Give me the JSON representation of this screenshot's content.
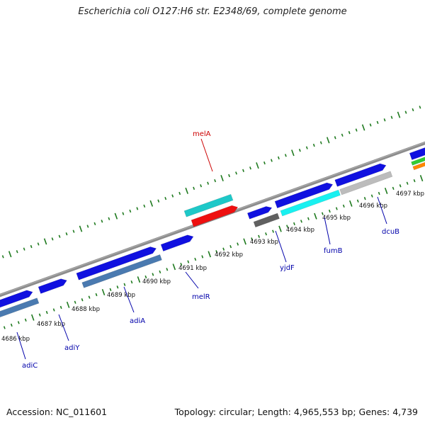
{
  "title": "Escherichia coli O127:H6 str. E2348/69, complete genome",
  "footer": {
    "accession": "Accession: NC_011601",
    "stats": "Topology: circular; Length: 4,965,553 bp; Genes: 4,739"
  },
  "colors": {
    "backbone": "#8c8c8c",
    "ticks": "#1f7a1f",
    "label_default": "#0000aa",
    "label_highlight": "#cc0000",
    "blue": "#1010e0",
    "steel": "#4a7ab0",
    "cyan": "#1ec8c8",
    "aqua": "#19f0f0",
    "red": "#ee1010",
    "gray": "#bcbcbc",
    "darkgray": "#606060",
    "green": "#33cc33",
    "orange": "#ff8800"
  },
  "kbp_labels": [
    "4686 kbp",
    "4687 kbp",
    "4688 kbp",
    "4689 kbp",
    "4690 kbp",
    "4691 kbp",
    "4692 kbp",
    "4693 kbp",
    "4694 kbp",
    "4695 kbp",
    "4696 kbp",
    "4697 kbp"
  ],
  "gene_labels": [
    {
      "name": "adiC",
      "highlight": false
    },
    {
      "name": "adiY",
      "highlight": false
    },
    {
      "name": "adiA",
      "highlight": false
    },
    {
      "name": "melR",
      "highlight": false
    },
    {
      "name": "melA",
      "highlight": true
    },
    {
      "name": "yjdF",
      "highlight": false
    },
    {
      "name": "fumB",
      "highlight": false
    },
    {
      "name": "dcuB",
      "highlight": false
    }
  ]
}
